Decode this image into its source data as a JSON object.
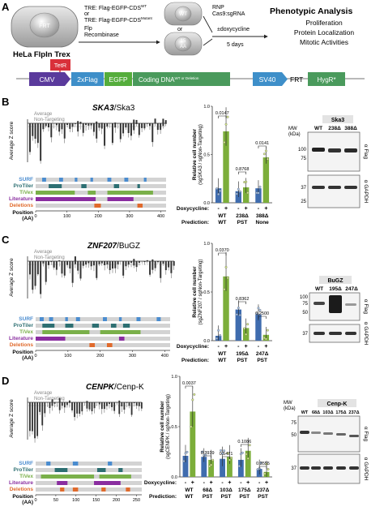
{
  "panel_a": {
    "letter": "A",
    "cell_line": "HeLa FlpIn Trex",
    "frt": "FRT",
    "tre_wt": "TRE: Flag-EGFP-CDS",
    "tre_wt_sup": "WT",
    "or_1": "or",
    "tre_mut": "TRE: Flag-EGFP-CDS",
    "tre_mut_sup": "Mutant",
    "flp": "Flp",
    "recombinase": "Recombinase",
    "wt_cell": "WT",
    "aa_cell_1": "15",
    "aa_cell_2": "AA",
    "or_2": "or",
    "rnp": "RNP",
    "cas9": "Cas9:sgRNA",
    "doxy": "±doxycycline",
    "days": "5 days",
    "phenotypic_title": "Phenotypic Analysis",
    "phen1": "Proliferation",
    "phen2": "Protein Localization",
    "phen3": "Mitotic Activities",
    "construct": {
      "tetr": "TetR",
      "cmv": "CMV",
      "flag": "2xFlag",
      "egfp": "EGFP",
      "coding": "Coding DNA",
      "coding_sup": "WT or Deletion",
      "sv40": "SV40",
      "frt": "FRT",
      "hygr": "HygR*"
    }
  },
  "common": {
    "avg_nt_1": "Average",
    "avg_nt_2": "Non-Targeting",
    "z_label": "Average Z score",
    "tracks": [
      "SURF",
      "ProTiler",
      "TiVex",
      "Literature",
      "Deletions"
    ],
    "position_1": "Position",
    "position_2": "(AA)",
    "doxy_label": "Doxycycline:",
    "pred_label": "Prediction:",
    "mw_1": "MW",
    "mw_2": "(kDa)",
    "minus": "-",
    "plus": "+",
    "colors": {
      "knockdown": "#3f6cae",
      "rescue": "#7cae3a",
      "surf": "#4a8ccf",
      "protiler": "#2d6f72",
      "tivex": "#7ab04a",
      "literature": "#8a2ea0",
      "deletions": "#e06a2c",
      "track_bg": "#d3d3d3"
    }
  },
  "panel_b": {
    "letter": "B",
    "gene": "SKA3",
    "gene_sep": "/Ska3",
    "ylabel_1": "Relative cell number",
    "ylabel_2": "(sgSKA3 / sgNon-Targeting)",
    "pvals": [
      "0.0147",
      "0.8768",
      "0.0141"
    ],
    "groups": [
      "WT",
      "238Δ",
      "388Δ"
    ],
    "preds": [
      "WT",
      "PST",
      "None"
    ],
    "blot": {
      "title": "Ska3",
      "lanes": [
        "WT",
        "238Δ",
        "388Δ"
      ],
      "mw_top": [
        "100",
        "75"
      ],
      "mw_bottom": [
        "37",
        "25"
      ],
      "ab_top": "α Flag",
      "ab_bottom": "α GAPDH"
    },
    "x_ticks": [
      "0",
      "100",
      "200",
      "300",
      "400"
    ],
    "chart_data": {
      "type": "bar",
      "categories": [
        "WT",
        "238Δ",
        "388Δ"
      ],
      "series": [
        {
          "name": "-",
          "values": [
            0.15,
            0.12,
            0.15
          ]
        },
        {
          "name": "+",
          "values": [
            0.74,
            0.16,
            0.47
          ]
        }
      ],
      "ylim": [
        0,
        1.0
      ],
      "yticks": [
        "0.0",
        "0.5",
        "1.0"
      ]
    }
  },
  "panel_c": {
    "letter": "C",
    "gene": "ZNF207",
    "gene_sep": "/BuGZ",
    "ylabel_1": "Relative cell number",
    "ylabel_2": "(sgZNF207 / sgNon-Targeting)",
    "pvals": [
      "0.0370",
      "0.8362",
      "0.2500"
    ],
    "groups": [
      "WT",
      "195Δ",
      "247Δ"
    ],
    "preds": [
      "WT",
      "PST",
      "PST"
    ],
    "blot": {
      "title": "BuGZ",
      "lanes": [
        "WT",
        "195Δ",
        "247Δ"
      ],
      "mw_top": [
        "100",
        "75",
        "50"
      ],
      "mw_bottom": [
        "37"
      ],
      "ab_top": "α Flag",
      "ab_bottom": "α GAPDH"
    },
    "x_ticks": [
      "0",
      "100",
      "200",
      "300",
      "400"
    ],
    "chart_data": {
      "type": "bar",
      "categories": [
        "WT",
        "195Δ",
        "247Δ"
      ],
      "series": [
        {
          "name": "-",
          "values": [
            0.05,
            0.32,
            0.27
          ]
        },
        {
          "name": "+",
          "values": [
            0.66,
            0.13,
            0.06
          ]
        }
      ],
      "ylim": [
        0,
        1.0
      ],
      "yticks": [
        "0.0",
        "0.5",
        "1.0"
      ]
    }
  },
  "panel_d": {
    "letter": "D",
    "gene": "CENPK",
    "gene_sep": "/Cenp-K",
    "ylabel_1": "Relative cell number",
    "ylabel_2": "(sgCENPK / sgNon-Targeting)",
    "pvals": [
      "0.0037",
      "0.3939",
      "0.5471",
      "0.1086",
      "0.3555"
    ],
    "groups": [
      "WT",
      "68Δ",
      "103Δ",
      "175Δ",
      "237Δ"
    ],
    "preds": [
      "WT",
      "PST",
      "PST",
      "PST",
      "PST"
    ],
    "blot": {
      "title": "Cenp-K",
      "lanes": [
        "WT",
        "68Δ",
        "103Δ",
        "175Δ",
        "237Δ"
      ],
      "mw_top": [
        "75",
        "50"
      ],
      "mw_bottom": [
        "37"
      ],
      "ab_top": "α Flag",
      "ab_bottom": "α GAPDH"
    },
    "x_ticks": [
      "0",
      "50",
      "100",
      "150",
      "200",
      "250"
    ],
    "chart_data": {
      "type": "bar",
      "categories": [
        "WT",
        "68Δ",
        "103Δ",
        "175Δ",
        "237Δ"
      ],
      "series": [
        {
          "name": "-",
          "values": [
            0.21,
            0.2,
            0.18,
            0.17,
            0.08
          ]
        },
        {
          "name": "+",
          "values": [
            0.65,
            0.17,
            0.2,
            0.26,
            0.05
          ]
        }
      ],
      "ylim": [
        0,
        1.0
      ],
      "yticks": [
        "0.0",
        "0.5",
        "1.0"
      ]
    }
  }
}
